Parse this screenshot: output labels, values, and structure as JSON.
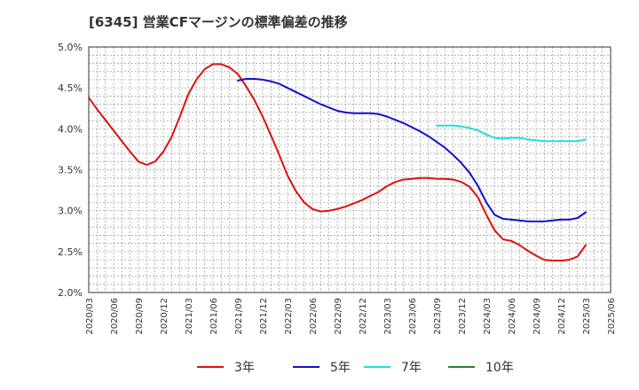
{
  "chart_data": {
    "type": "line",
    "title": "[6345]  営業CFマージンの標準偏差の推移",
    "xlabel": "",
    "ylabel": "",
    "ylim": [
      2.0,
      5.0
    ],
    "y_ticks": [
      "2.0%",
      "2.5%",
      "3.0%",
      "3.5%",
      "4.0%",
      "4.5%",
      "5.0%"
    ],
    "x_range": [
      "2020/03",
      "2025/06"
    ],
    "x_ticks": [
      "2020/03",
      "2020/06",
      "2020/09",
      "2020/12",
      "2021/03",
      "2021/06",
      "2021/09",
      "2021/12",
      "2022/03",
      "2022/06",
      "2022/09",
      "2022/12",
      "2023/03",
      "2023/06",
      "2023/09",
      "2023/12",
      "2024/03",
      "2024/06",
      "2024/09",
      "2024/12",
      "2025/03",
      "2025/06"
    ],
    "grid": true,
    "legend_position": "bottom",
    "series": [
      {
        "name": "3年",
        "color": "#dd1111",
        "x": [
          "2020/03",
          "2020/04",
          "2020/05",
          "2020/06",
          "2020/07",
          "2020/08",
          "2020/09",
          "2020/10",
          "2020/11",
          "2020/12",
          "2021/01",
          "2021/02",
          "2021/03",
          "2021/04",
          "2021/05",
          "2021/06",
          "2021/07",
          "2021/08",
          "2021/09",
          "2021/10",
          "2021/11",
          "2021/12",
          "2022/01",
          "2022/02",
          "2022/03",
          "2022/04",
          "2022/05",
          "2022/06",
          "2022/07",
          "2022/08",
          "2022/09",
          "2022/10",
          "2022/11",
          "2022/12",
          "2023/01",
          "2023/02",
          "2023/03",
          "2023/04",
          "2023/05",
          "2023/06",
          "2023/07",
          "2023/08",
          "2023/09",
          "2023/10",
          "2023/11",
          "2023/12",
          "2024/01",
          "2024/02",
          "2024/03",
          "2024/04",
          "2024/05",
          "2024/06",
          "2024/07",
          "2024/08",
          "2024/09",
          "2024/10",
          "2024/11",
          "2024/12",
          "2025/01",
          "2025/02",
          "2025/03"
        ],
        "values": [
          4.38,
          4.24,
          4.11,
          3.98,
          3.85,
          3.72,
          3.6,
          3.56,
          3.6,
          3.72,
          3.9,
          4.15,
          4.42,
          4.6,
          4.73,
          4.79,
          4.79,
          4.75,
          4.67,
          4.52,
          4.35,
          4.15,
          3.92,
          3.68,
          3.43,
          3.24,
          3.1,
          3.02,
          2.99,
          3.0,
          3.02,
          3.05,
          3.09,
          3.13,
          3.18,
          3.23,
          3.3,
          3.35,
          3.38,
          3.39,
          3.4,
          3.4,
          3.39,
          3.39,
          3.38,
          3.35,
          3.29,
          3.16,
          2.95,
          2.76,
          2.65,
          2.63,
          2.58,
          2.51,
          2.45,
          2.4,
          2.39,
          2.39,
          2.4,
          2.44,
          2.58
        ]
      },
      {
        "name": "5年",
        "color": "#1111cc",
        "x": [
          "2021/09",
          "2021/10",
          "2021/11",
          "2021/12",
          "2022/01",
          "2022/02",
          "2022/03",
          "2022/04",
          "2022/05",
          "2022/06",
          "2022/07",
          "2022/08",
          "2022/09",
          "2022/10",
          "2022/11",
          "2022/12",
          "2023/01",
          "2023/02",
          "2023/03",
          "2023/04",
          "2023/05",
          "2023/06",
          "2023/07",
          "2023/08",
          "2023/09",
          "2023/10",
          "2023/11",
          "2023/12",
          "2024/01",
          "2024/02",
          "2024/03",
          "2024/04",
          "2024/05",
          "2024/06",
          "2024/07",
          "2024/08",
          "2024/09",
          "2024/10",
          "2024/11",
          "2024/12",
          "2025/01",
          "2025/02",
          "2025/03"
        ],
        "values": [
          4.59,
          4.61,
          4.61,
          4.6,
          4.58,
          4.55,
          4.5,
          4.45,
          4.4,
          4.35,
          4.3,
          4.26,
          4.22,
          4.2,
          4.19,
          4.19,
          4.19,
          4.18,
          4.15,
          4.11,
          4.07,
          4.02,
          3.97,
          3.91,
          3.84,
          3.77,
          3.68,
          3.58,
          3.46,
          3.3,
          3.1,
          2.95,
          2.9,
          2.89,
          2.88,
          2.87,
          2.87,
          2.87,
          2.88,
          2.89,
          2.89,
          2.91,
          2.98
        ]
      },
      {
        "name": "7年",
        "color": "#22dddd",
        "x": [
          "2023/09",
          "2023/10",
          "2023/11",
          "2023/12",
          "2024/01",
          "2024/02",
          "2024/03",
          "2024/04",
          "2024/05",
          "2024/06",
          "2024/07",
          "2024/08",
          "2024/09",
          "2024/10",
          "2024/11",
          "2024/12",
          "2025/01",
          "2025/02",
          "2025/03"
        ],
        "values": [
          4.04,
          4.04,
          4.04,
          4.03,
          4.01,
          3.98,
          3.93,
          3.89,
          3.88,
          3.89,
          3.89,
          3.87,
          3.86,
          3.85,
          3.85,
          3.85,
          3.85,
          3.85,
          3.87
        ]
      },
      {
        "name": "10年",
        "color": "#228822",
        "x": [],
        "values": []
      }
    ]
  }
}
